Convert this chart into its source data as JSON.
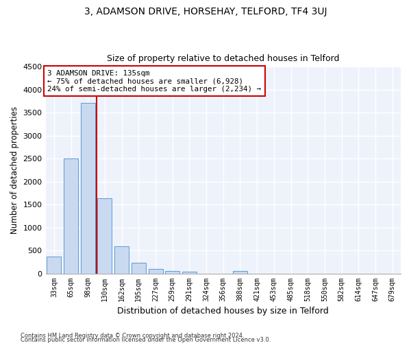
{
  "title_line1": "3, ADAMSON DRIVE, HORSEHAY, TELFORD, TF4 3UJ",
  "title_line2": "Size of property relative to detached houses in Telford",
  "xlabel": "Distribution of detached houses by size in Telford",
  "ylabel": "Number of detached properties",
  "categories": [
    "33sqm",
    "65sqm",
    "98sqm",
    "130sqm",
    "162sqm",
    "195sqm",
    "227sqm",
    "259sqm",
    "291sqm",
    "324sqm",
    "356sqm",
    "388sqm",
    "421sqm",
    "453sqm",
    "485sqm",
    "518sqm",
    "550sqm",
    "582sqm",
    "614sqm",
    "647sqm",
    "679sqm"
  ],
  "values": [
    370,
    2500,
    3720,
    1630,
    590,
    230,
    105,
    60,
    40,
    0,
    0,
    50,
    0,
    0,
    0,
    0,
    0,
    0,
    0,
    0,
    0
  ],
  "bar_color": "#c9d9f0",
  "bar_edge_color": "#5b9bd5",
  "vline_index": 3,
  "annotation_text_line1": "3 ADAMSON DRIVE: 135sqm",
  "annotation_text_line2": "← 75% of detached houses are smaller (6,928)",
  "annotation_text_line3": "24% of semi-detached houses are larger (2,234) →",
  "annotation_box_color": "#ffffff",
  "annotation_box_edge_color": "#cc0000",
  "vline_color": "#cc0000",
  "ylim": [
    0,
    4500
  ],
  "yticks": [
    0,
    500,
    1000,
    1500,
    2000,
    2500,
    3000,
    3500,
    4000,
    4500
  ],
  "background_color": "#eef2fb",
  "grid_color": "#ffffff",
  "footer_line1": "Contains HM Land Registry data © Crown copyright and database right 2024.",
  "footer_line2": "Contains public sector information licensed under the Open Government Licence v3.0."
}
